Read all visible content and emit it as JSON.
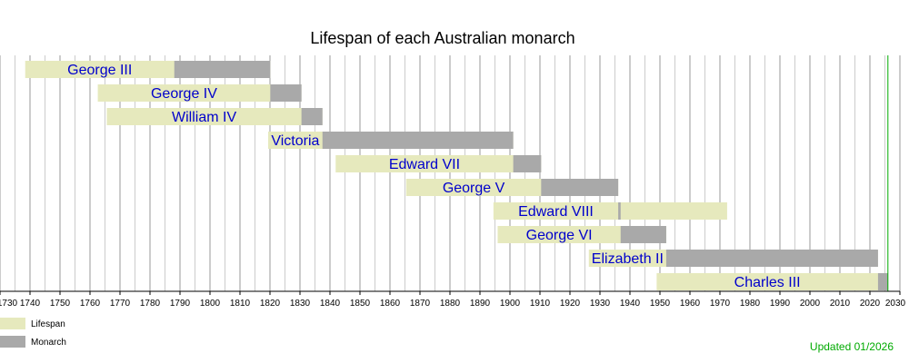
{
  "chart_data": {
    "type": "bar",
    "title": "Lifespan of each Australian monarch",
    "xlim": [
      1730,
      2030
    ],
    "tick_step": 10,
    "grid": true,
    "colors": {
      "lifespan": "#e6e9bd",
      "monarch": "#a9a9a9",
      "label": "#0000cc",
      "current": "#00aa00",
      "grid": "#bbbbbb"
    },
    "legend": {
      "placement": "bottom-left",
      "lifespan_label": "Lifespan",
      "monarch_label": "Monarch"
    },
    "current_date": 2026.0,
    "updated_text": "Updated 01/2026",
    "series": [
      {
        "name": "George III",
        "born": 1738.4,
        "reign_start": 1788.1,
        "reign_end": 1820.1,
        "died": 1820.1
      },
      {
        "name": "George IV",
        "born": 1762.6,
        "reign_start": 1820.1,
        "reign_end": 1830.5,
        "died": 1830.5
      },
      {
        "name": "William IV",
        "born": 1765.6,
        "reign_start": 1830.5,
        "reign_end": 1837.5,
        "died": 1837.5
      },
      {
        "name": "Victoria",
        "born": 1819.4,
        "reign_start": 1837.5,
        "reign_end": 1901.1,
        "died": 1901.1
      },
      {
        "name": "Edward VII",
        "born": 1841.9,
        "reign_start": 1901.1,
        "reign_end": 1910.4,
        "died": 1910.4
      },
      {
        "name": "George V",
        "born": 1865.4,
        "reign_start": 1910.4,
        "reign_end": 1936.1,
        "died": 1936.1
      },
      {
        "name": "Edward VIII",
        "born": 1894.5,
        "reign_start": 1936.1,
        "reign_end": 1936.9,
        "died": 1972.4
      },
      {
        "name": "George VI",
        "born": 1895.9,
        "reign_start": 1936.9,
        "reign_end": 1952.1,
        "died": 1952.1
      },
      {
        "name": "Elizabeth II",
        "born": 1926.3,
        "reign_start": 1952.1,
        "reign_end": 2022.7,
        "died": 2022.7
      },
      {
        "name": "Charles III",
        "born": 1948.9,
        "reign_start": 2022.7,
        "reign_end": 2026.0,
        "died": 2026.0
      }
    ]
  }
}
